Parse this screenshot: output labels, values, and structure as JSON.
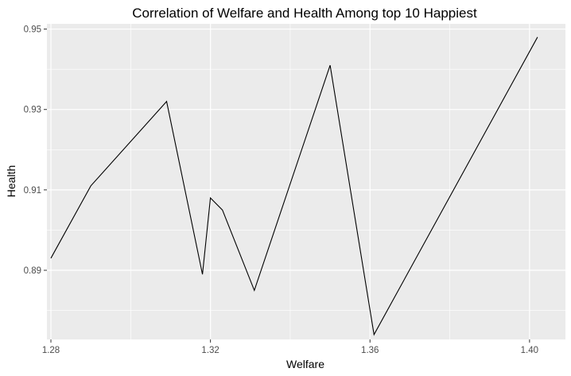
{
  "chart_data": {
    "type": "line",
    "title": "Correlation of Welfare and Health Among top 10 Happiest",
    "xlabel": "Welfare",
    "ylabel": "Health",
    "x_ticks": [
      "1.28",
      "1.32",
      "1.36",
      "1.40"
    ],
    "y_ticks": [
      "0.89",
      "0.91",
      "0.93",
      "0.95"
    ],
    "xlim": [
      1.279,
      1.409
    ],
    "ylim": [
      0.8728,
      0.9513
    ],
    "grid": true,
    "series": [
      {
        "x": [
          1.28,
          1.29,
          1.309,
          1.318,
          1.32,
          1.323,
          1.331,
          1.35,
          1.361,
          1.402
        ],
        "y": [
          0.893,
          0.911,
          0.932,
          0.889,
          0.908,
          0.905,
          0.885,
          0.941,
          0.874,
          0.948
        ]
      }
    ]
  },
  "colors": {
    "panel_background": "#ebebeb",
    "grid_major": "#ffffff",
    "line": "#000000",
    "tick_text": "#4d4d4d"
  }
}
